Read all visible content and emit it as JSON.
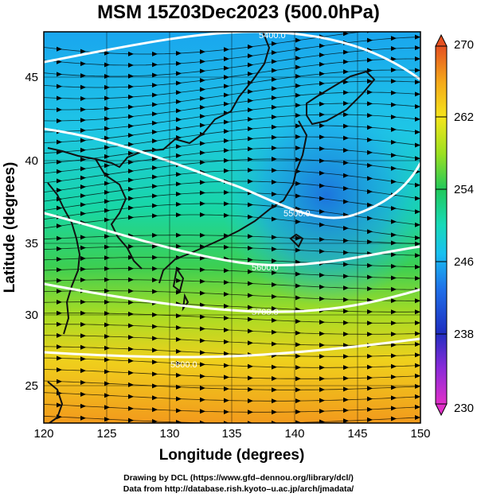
{
  "title": "MSM 15Z03Dec2023 (500.0hPa)",
  "map": {
    "type": "geopotential-height / temperature map with streamlines",
    "x_axis": {
      "label": "Longitude (degrees)",
      "range": [
        120,
        150
      ],
      "ticks": [
        "120",
        "125",
        "130",
        "135",
        "140",
        "145",
        "150"
      ]
    },
    "y_axis": {
      "label": "Latitude  (degrees)",
      "range": [
        22.4,
        47.6
      ],
      "ticks": [
        "25",
        "30",
        "35",
        "40",
        "45"
      ]
    },
    "colorbar": {
      "range": [
        230,
        270
      ],
      "tick_labels": [
        "270",
        "262",
        "254",
        "246",
        "238",
        "230"
      ],
      "colors_low_to_high": [
        "#e030c8",
        "#8a2ad8",
        "#1e2ec0",
        "#1f6fe8",
        "#19c0f0",
        "#17d9b8",
        "#21c85a",
        "#9be020",
        "#f4e51c",
        "#f4a81a",
        "#e55020"
      ]
    },
    "contour_labels": [
      "5400.0",
      "5500.0",
      "5600.0",
      "5700.0",
      "5800.0"
    ],
    "coastline_color": "#111111",
    "contour_color": "#ffffff",
    "streamline_color": "#000000"
  },
  "credits": {
    "line1": "Drawing by DCL (https://www.gfd–dennou.org/library/dcl/)",
    "line2": "Data from http://database.rish.kyoto–u.ac.jp/arch/jmadata/"
  }
}
